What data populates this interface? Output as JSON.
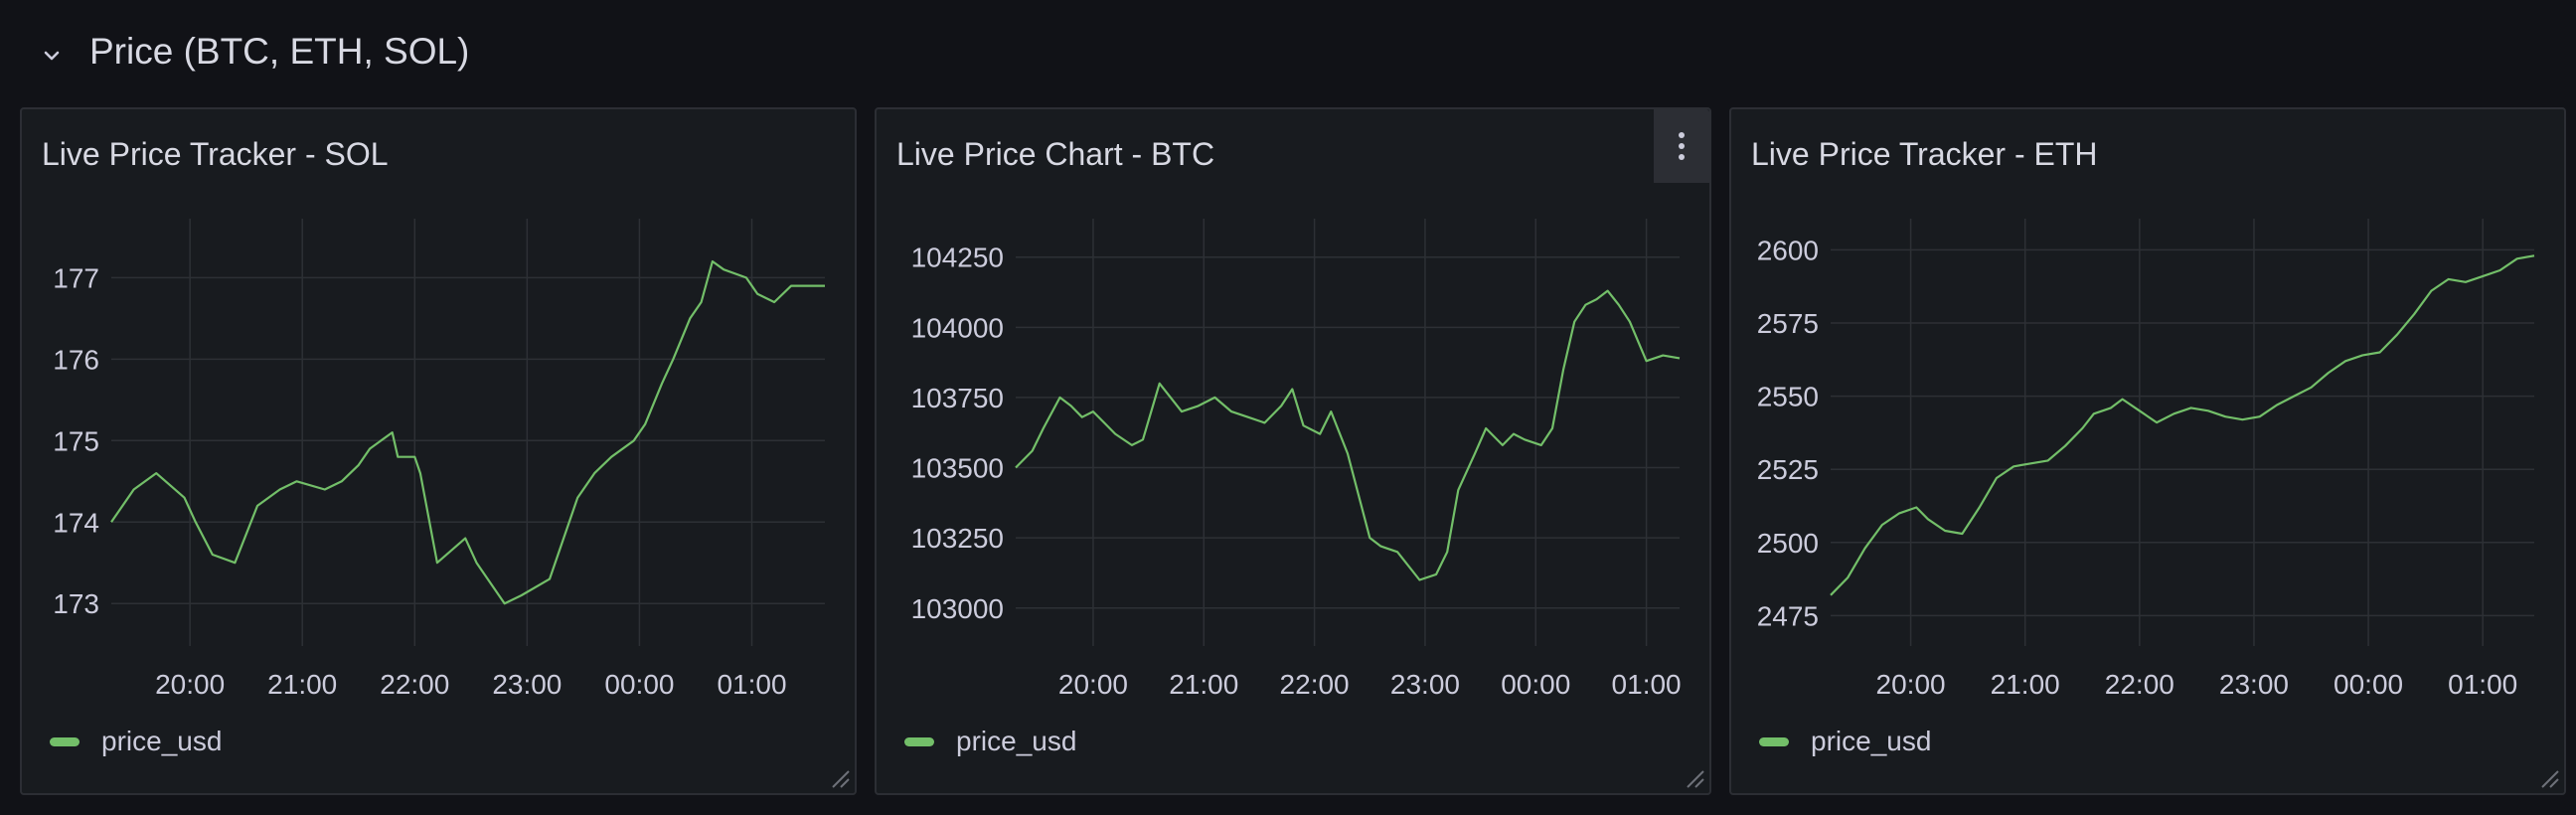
{
  "row": {
    "title": "Price (BTC, ETH, SOL)"
  },
  "colors": {
    "background": "#111217",
    "panel": "#181b1f",
    "border": "#2c2e34",
    "series": "#73bf69",
    "grid": "#2d3035"
  },
  "icons": {
    "row_toggle": "chevron-down-icon",
    "panel_menu": "kebab-menu-icon",
    "resize": "resize-handle-icon"
  },
  "panels": [
    {
      "title": "Live Price Tracker - SOL",
      "legend": "price_usd",
      "chart_data": {
        "type": "line",
        "x_label_ticks": [
          "20:00",
          "21:00",
          "22:00",
          "23:00",
          "00:00",
          "01:00"
        ],
        "y_ticks": [
          173,
          174,
          175,
          176,
          177
        ],
        "ylim": [
          172.6,
          177.7
        ],
        "series": [
          {
            "name": "price_usd",
            "x": [
              19.3,
              19.5,
              19.7,
              19.95,
              20.05,
              20.2,
              20.4,
              20.6,
              20.8,
              20.95,
              21.2,
              21.35,
              21.5,
              21.6,
              21.8,
              21.85,
              22.0,
              22.05,
              22.2,
              22.45,
              22.55,
              22.8,
              22.95,
              23.2,
              23.45,
              23.6,
              23.75,
              23.95,
              24.05,
              24.2,
              24.3,
              24.45,
              24.55,
              24.65,
              24.75,
              24.95,
              25.05,
              25.2,
              25.35,
              25.5,
              25.65
            ],
            "y": [
              174.0,
              174.4,
              174.6,
              174.3,
              174.0,
              173.6,
              173.5,
              174.2,
              174.4,
              174.5,
              174.4,
              174.5,
              174.7,
              174.9,
              175.1,
              174.8,
              174.8,
              174.6,
              173.5,
              173.8,
              173.5,
              173.0,
              173.1,
              173.3,
              174.3,
              174.6,
              174.8,
              175.0,
              175.2,
              175.7,
              176.0,
              176.5,
              176.7,
              177.2,
              177.1,
              177.0,
              176.8,
              176.7,
              176.9,
              176.9,
              176.9
            ]
          }
        ]
      }
    },
    {
      "title": "Live Price Chart - BTC",
      "legend": "price_usd",
      "chart_data": {
        "type": "line",
        "x_label_ticks": [
          "20:00",
          "21:00",
          "22:00",
          "23:00",
          "00:00",
          "01:00"
        ],
        "y_ticks": [
          103000,
          103250,
          103500,
          103750,
          104000,
          104250
        ],
        "ylim": [
          102900,
          104380
        ],
        "series": [
          {
            "name": "price_usd",
            "x": [
              19.3,
              19.45,
              19.55,
              19.7,
              19.8,
              19.9,
              20.0,
              20.1,
              20.2,
              20.35,
              20.45,
              20.6,
              20.8,
              20.95,
              21.1,
              21.25,
              21.4,
              21.55,
              21.7,
              21.8,
              21.9,
              22.05,
              22.15,
              22.3,
              22.5,
              22.6,
              22.75,
              22.95,
              23.1,
              23.2,
              23.3,
              23.45,
              23.55,
              23.7,
              23.8,
              23.9,
              24.05,
              24.15,
              24.25,
              24.35,
              24.45,
              24.55,
              24.65,
              24.75,
              24.85,
              25.0,
              25.15,
              25.3
            ],
            "y": [
              103500,
              103560,
              103640,
              103750,
              103720,
              103680,
              103700,
              103660,
              103620,
              103580,
              103600,
              103800,
              103700,
              103720,
              103750,
              103700,
              103680,
              103660,
              103720,
              103780,
              103650,
              103620,
              103700,
              103550,
              103250,
              103220,
              103200,
              103100,
              103120,
              103200,
              103420,
              103550,
              103640,
              103580,
              103620,
              103600,
              103580,
              103640,
              103850,
              104020,
              104080,
              104100,
              104130,
              104080,
              104020,
              103880,
              103900,
              103890
            ]
          }
        ]
      }
    },
    {
      "title": "Live Price Tracker - ETH",
      "legend": "price_usd",
      "chart_data": {
        "type": "line",
        "x_label_ticks": [
          "20:00",
          "21:00",
          "22:00",
          "23:00",
          "00:00",
          "01:00"
        ],
        "y_ticks": [
          2475,
          2500,
          2525,
          2550,
          2575,
          2600
        ],
        "ylim": [
          2468,
          2610
        ],
        "series": [
          {
            "name": "price_usd",
            "x": [
              19.3,
              19.45,
              19.6,
              19.75,
              19.9,
              20.05,
              20.15,
              20.3,
              20.45,
              20.6,
              20.75,
              20.9,
              21.05,
              21.2,
              21.35,
              21.5,
              21.6,
              21.75,
              21.85,
              22.0,
              22.15,
              22.3,
              22.45,
              22.6,
              22.75,
              22.9,
              23.05,
              23.2,
              23.35,
              23.5,
              23.65,
              23.8,
              23.95,
              24.1,
              24.25,
              24.4,
              24.55,
              24.7,
              24.85,
              25.0,
              25.15,
              25.3,
              25.45
            ],
            "y": [
              2482,
              2488,
              2498,
              2506,
              2510,
              2512,
              2508,
              2504,
              2503,
              2512,
              2522,
              2526,
              2527,
              2528,
              2533,
              2539,
              2544,
              2546,
              2549,
              2545,
              2541,
              2544,
              2546,
              2545,
              2543,
              2542,
              2543,
              2547,
              2550,
              2553,
              2558,
              2562,
              2564,
              2565,
              2571,
              2578,
              2586,
              2590,
              2589,
              2591,
              2593,
              2597,
              2598
            ]
          }
        ]
      }
    }
  ]
}
